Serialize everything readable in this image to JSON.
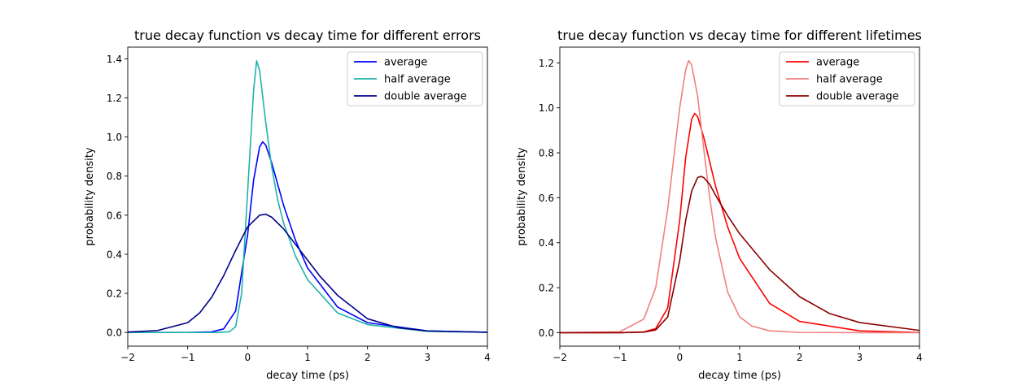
{
  "chart_data": [
    {
      "type": "line",
      "title": "true decay function vs decay time for different errors",
      "xlabel": "decay time (ps)",
      "ylabel": "probability density",
      "xlim": [
        -2,
        4
      ],
      "ylim": [
        -0.07,
        1.46
      ],
      "xticks": [
        -2,
        -1,
        0,
        1,
        2,
        3,
        4
      ],
      "xtick_labels": [
        "−2",
        "−1",
        "0",
        "1",
        "2",
        "3",
        "4"
      ],
      "yticks": [
        0.0,
        0.2,
        0.4,
        0.6,
        0.8,
        1.0,
        1.2,
        1.4
      ],
      "ytick_labels": [
        "0.0",
        "0.2",
        "0.4",
        "0.6",
        "0.8",
        "1.0",
        "1.2",
        "1.4"
      ],
      "grid": false,
      "legend_position": "top-right",
      "series": [
        {
          "name": "average",
          "color": "#0000ff",
          "x": [
            -2,
            -1,
            -0.6,
            -0.4,
            -0.2,
            0,
            0.1,
            0.2,
            0.25,
            0.3,
            0.4,
            0.5,
            0.6,
            0.8,
            1,
            1.5,
            2,
            3,
            4
          ],
          "y": [
            0,
            0,
            0.003,
            0.018,
            0.11,
            0.5,
            0.78,
            0.95,
            0.975,
            0.96,
            0.87,
            0.76,
            0.65,
            0.47,
            0.33,
            0.13,
            0.05,
            0.008,
            0.001
          ]
        },
        {
          "name": "half average",
          "color": "#20b2aa",
          "x": [
            -2,
            -0.5,
            -0.3,
            -0.2,
            -0.1,
            0,
            0.1,
            0.15,
            0.2,
            0.3,
            0.4,
            0.5,
            0.6,
            0.8,
            1,
            1.5,
            2,
            3,
            4
          ],
          "y": [
            0,
            0,
            0.004,
            0.03,
            0.2,
            0.72,
            1.24,
            1.39,
            1.34,
            1.08,
            0.85,
            0.68,
            0.56,
            0.39,
            0.27,
            0.1,
            0.04,
            0.005,
            0.001
          ]
        },
        {
          "name": "double average",
          "color": "#00008b",
          "x": [
            -2,
            -1.5,
            -1,
            -0.8,
            -0.6,
            -0.4,
            -0.2,
            0,
            0.2,
            0.3,
            0.4,
            0.6,
            0.8,
            1,
            1.2,
            1.5,
            2,
            2.5,
            3,
            4
          ],
          "y": [
            0.002,
            0.01,
            0.05,
            0.1,
            0.18,
            0.29,
            0.42,
            0.54,
            0.6,
            0.605,
            0.59,
            0.53,
            0.45,
            0.37,
            0.29,
            0.19,
            0.07,
            0.025,
            0.008,
            0.001
          ]
        }
      ]
    },
    {
      "type": "line",
      "title": "true decay function vs decay time for different lifetimes",
      "xlabel": "decay time (ps)",
      "ylabel": "probability density",
      "xlim": [
        -2,
        4
      ],
      "ylim": [
        -0.06,
        1.27
      ],
      "xticks": [
        -2,
        -1,
        0,
        1,
        2,
        3,
        4
      ],
      "xtick_labels": [
        "−2",
        "−1",
        "0",
        "1",
        "2",
        "3",
        "4"
      ],
      "yticks": [
        0.0,
        0.2,
        0.4,
        0.6,
        0.8,
        1.0,
        1.2
      ],
      "ytick_labels": [
        "0.0",
        "0.2",
        "0.4",
        "0.6",
        "0.8",
        "1.0",
        "1.2"
      ],
      "grid": false,
      "legend_position": "top-right",
      "series": [
        {
          "name": "average",
          "color": "#ff0000",
          "x": [
            -2,
            -1,
            -0.6,
            -0.4,
            -0.2,
            0,
            0.1,
            0.2,
            0.25,
            0.3,
            0.4,
            0.5,
            0.6,
            0.8,
            1,
            1.5,
            2,
            3,
            4
          ],
          "y": [
            0,
            0,
            0.003,
            0.018,
            0.11,
            0.5,
            0.78,
            0.95,
            0.975,
            0.96,
            0.87,
            0.76,
            0.65,
            0.47,
            0.33,
            0.13,
            0.05,
            0.008,
            0.001
          ]
        },
        {
          "name": "half average",
          "color": "#f08080",
          "x": [
            -2,
            -1,
            -0.6,
            -0.4,
            -0.2,
            0,
            0.1,
            0.15,
            0.2,
            0.3,
            0.4,
            0.5,
            0.6,
            0.8,
            1,
            1.2,
            1.5,
            2,
            3,
            4
          ],
          "y": [
            0,
            0.004,
            0.06,
            0.2,
            0.55,
            1.0,
            1.17,
            1.21,
            1.19,
            1.05,
            0.82,
            0.6,
            0.42,
            0.18,
            0.07,
            0.03,
            0.008,
            0.001,
            0,
            0
          ]
        },
        {
          "name": "double average",
          "color": "#8b0000",
          "x": [
            -2,
            -1,
            -0.6,
            -0.4,
            -0.2,
            0,
            0.1,
            0.2,
            0.3,
            0.35,
            0.4,
            0.5,
            0.6,
            0.8,
            1,
            1.5,
            2,
            2.5,
            3,
            4
          ],
          "y": [
            0,
            0,
            0.002,
            0.012,
            0.07,
            0.32,
            0.5,
            0.63,
            0.69,
            0.695,
            0.69,
            0.66,
            0.61,
            0.52,
            0.44,
            0.28,
            0.16,
            0.085,
            0.045,
            0.01
          ]
        }
      ]
    }
  ]
}
